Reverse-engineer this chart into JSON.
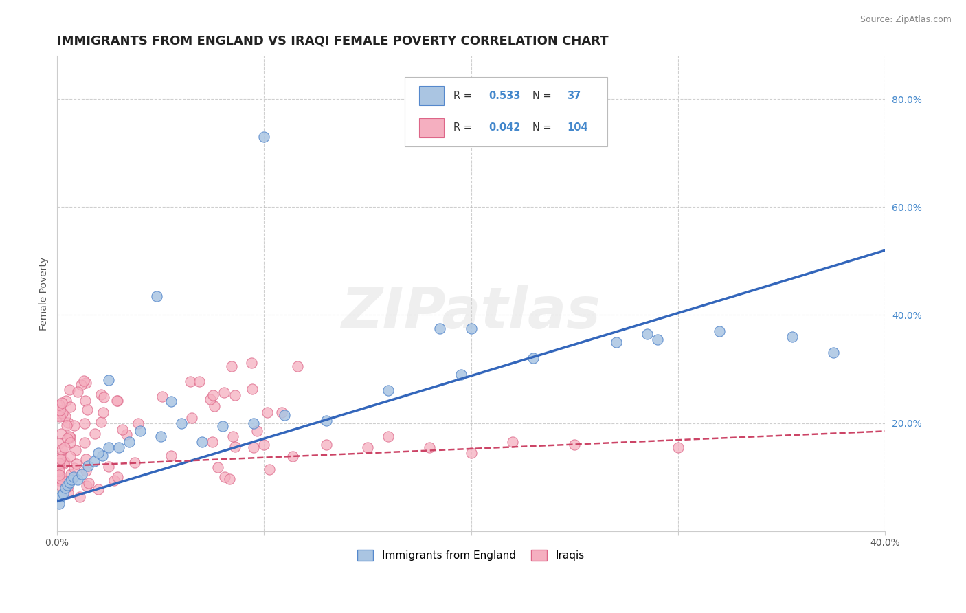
{
  "title": "IMMIGRANTS FROM ENGLAND VS IRAQI FEMALE POVERTY CORRELATION CHART",
  "source": "Source: ZipAtlas.com",
  "ylabel": "Female Poverty",
  "xlim": [
    0.0,
    0.4
  ],
  "ylim": [
    0.0,
    0.88
  ],
  "england_color": "#aac5e2",
  "iraqis_color": "#f5afc0",
  "england_edge": "#5588cc",
  "iraqis_edge": "#dd6688",
  "line_england": "#3366bb",
  "line_iraqis": "#cc4466",
  "R_england": 0.533,
  "N_england": 37,
  "R_iraqis": 0.042,
  "N_iraqis": 104,
  "legend_label_england": "Immigrants from England",
  "legend_label_iraqis": "Iraqis",
  "watermark": "ZIPatlas",
  "background_color": "#ffffff",
  "grid_color": "#bbbbbb",
  "title_fontsize": 13,
  "axis_label_fontsize": 10,
  "tick_fontsize": 10,
  "legend_fontsize": 11,
  "eng_line_x0": 0.0,
  "eng_line_y0": 0.055,
  "eng_line_x1": 0.4,
  "eng_line_y1": 0.52,
  "irq_line_x0": 0.0,
  "irq_line_y0": 0.12,
  "irq_line_x1": 0.4,
  "irq_line_y1": 0.185
}
